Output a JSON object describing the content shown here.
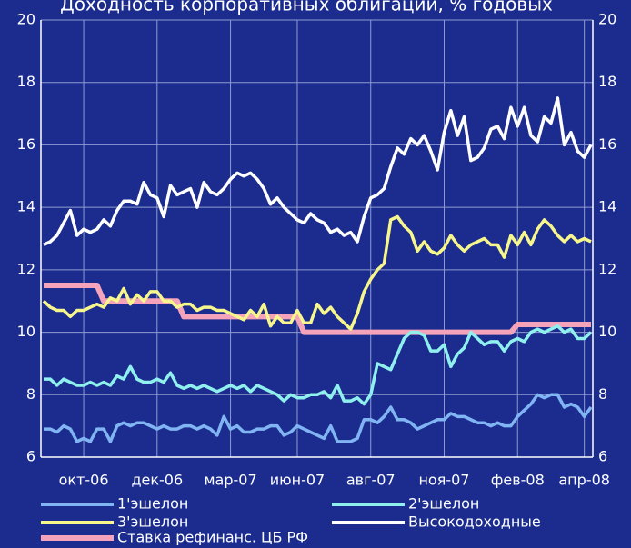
{
  "chart_data": {
    "type": "line",
    "title": "Доходность корпоративных облигаций, % годовых",
    "categories": [
      null,
      null,
      null,
      null,
      null,
      null,
      "окт-06",
      null,
      null,
      null,
      null,
      null,
      null,
      null,
      null,
      null,
      null,
      "дек-06",
      null,
      null,
      null,
      null,
      null,
      null,
      null,
      null,
      null,
      null,
      "мар-07",
      null,
      null,
      null,
      null,
      null,
      null,
      null,
      null,
      null,
      "июн-07",
      null,
      null,
      null,
      null,
      null,
      null,
      null,
      null,
      null,
      null,
      "авг-07",
      null,
      null,
      null,
      null,
      null,
      null,
      null,
      null,
      null,
      null,
      "ноя-07",
      null,
      null,
      null,
      null,
      null,
      null,
      null,
      null,
      null,
      null,
      "фев-08",
      null,
      null,
      null,
      null,
      null,
      null,
      null,
      null,
      null,
      "апр-08",
      null
    ],
    "series": [
      {
        "name": "1'эшелон",
        "color": "#80b4f2",
        "values": [
          6.9,
          6.9,
          6.8,
          7.0,
          6.9,
          6.5,
          6.6,
          6.5,
          6.9,
          6.9,
          6.5,
          7.0,
          7.1,
          7.0,
          7.1,
          7.1,
          7.0,
          6.9,
          7.0,
          6.9,
          6.9,
          7.0,
          7.0,
          6.9,
          7.0,
          6.9,
          6.7,
          7.3,
          6.9,
          7.0,
          6.8,
          6.8,
          6.9,
          6.9,
          7.0,
          7.0,
          6.7,
          6.8,
          7.0,
          6.9,
          6.8,
          6.7,
          6.6,
          7.0,
          6.5,
          6.5,
          6.5,
          6.6,
          7.2,
          7.2,
          7.1,
          7.3,
          7.6,
          7.2,
          7.2,
          7.1,
          6.9,
          7.0,
          7.1,
          7.2,
          7.2,
          7.4,
          7.3,
          7.3,
          7.2,
          7.1,
          7.1,
          7.0,
          7.1,
          7.0,
          7.0,
          7.3,
          7.5,
          7.7,
          8.0,
          7.9,
          8.0,
          8.0,
          7.6,
          7.7,
          7.6,
          7.3,
          7.6
        ]
      },
      {
        "name": "2'эшелон",
        "color": "#90f0ee",
        "values": [
          8.5,
          8.5,
          8.3,
          8.5,
          8.4,
          8.3,
          8.3,
          8.4,
          8.3,
          8.4,
          8.3,
          8.6,
          8.5,
          8.9,
          8.5,
          8.4,
          8.4,
          8.5,
          8.4,
          8.7,
          8.3,
          8.2,
          8.3,
          8.2,
          8.3,
          8.2,
          8.1,
          8.2,
          8.3,
          8.2,
          8.3,
          8.1,
          8.3,
          8.2,
          8.1,
          8.0,
          7.8,
          8.0,
          7.9,
          7.9,
          8.0,
          8.0,
          8.1,
          7.9,
          8.3,
          7.8,
          7.8,
          7.9,
          7.7,
          8.0,
          9.0,
          8.9,
          8.8,
          9.3,
          9.8,
          10.0,
          10.0,
          9.9,
          9.4,
          9.4,
          9.6,
          8.9,
          9.3,
          9.5,
          10.0,
          9.8,
          9.6,
          9.7,
          9.7,
          9.4,
          9.7,
          9.8,
          9.7,
          10.0,
          10.1,
          10.0,
          10.1,
          10.2,
          10.0,
          10.1,
          9.8,
          9.8,
          10.0
        ]
      },
      {
        "name": "3'эшелон",
        "color": "#f6f68c",
        "values": [
          11.0,
          10.8,
          10.7,
          10.7,
          10.5,
          10.7,
          10.7,
          10.8,
          10.9,
          10.8,
          11.1,
          11.0,
          11.4,
          10.9,
          11.2,
          11.0,
          11.3,
          11.3,
          11.0,
          11.0,
          10.8,
          10.9,
          10.9,
          10.7,
          10.8,
          10.8,
          10.7,
          10.7,
          10.6,
          10.5,
          10.4,
          10.7,
          10.5,
          10.9,
          10.2,
          10.5,
          10.3,
          10.3,
          10.7,
          10.3,
          10.3,
          10.9,
          10.6,
          10.8,
          10.5,
          10.3,
          10.1,
          10.6,
          11.3,
          11.7,
          12.0,
          12.2,
          13.6,
          13.7,
          13.4,
          13.2,
          12.6,
          12.9,
          12.6,
          12.5,
          12.7,
          13.1,
          12.8,
          12.6,
          12.8,
          12.9,
          13.0,
          12.8,
          12.8,
          12.4,
          13.1,
          12.8,
          13.2,
          12.8,
          13.3,
          13.6,
          13.4,
          13.1,
          12.9,
          13.1,
          12.9,
          13.0,
          12.9
        ]
      },
      {
        "name": "Высокодоходные",
        "color": "#ffffff",
        "values": [
          12.8,
          12.9,
          13.1,
          13.5,
          13.9,
          13.1,
          13.3,
          13.2,
          13.3,
          13.6,
          13.4,
          13.9,
          14.2,
          14.2,
          14.1,
          14.8,
          14.4,
          14.3,
          13.7,
          14.7,
          14.4,
          14.5,
          14.6,
          14.0,
          14.8,
          14.5,
          14.4,
          14.6,
          14.9,
          15.1,
          15.0,
          15.1,
          14.9,
          14.6,
          14.1,
          14.3,
          14.0,
          13.8,
          13.6,
          13.5,
          13.8,
          13.6,
          13.5,
          13.2,
          13.3,
          13.1,
          13.2,
          12.9,
          13.7,
          14.3,
          14.4,
          14.6,
          15.3,
          15.9,
          15.7,
          16.2,
          16.0,
          16.3,
          15.8,
          15.2,
          16.4,
          17.1,
          16.3,
          16.9,
          15.5,
          15.6,
          15.9,
          16.5,
          16.6,
          16.2,
          17.2,
          16.6,
          17.2,
          16.3,
          16.1,
          16.9,
          16.7,
          17.5,
          16.0,
          16.4,
          15.8,
          15.6,
          16.0
        ]
      },
      {
        "name": "Ставка рефинанс. ЦБ РФ",
        "color": "#f4a3ba",
        "values": [
          11.5,
          11.5,
          11.5,
          11.5,
          11.5,
          11.5,
          11.5,
          11.5,
          11.5,
          11,
          11,
          11,
          11,
          11,
          11,
          11,
          11,
          11,
          11,
          11,
          11,
          10.5,
          10.5,
          10.5,
          10.5,
          10.5,
          10.5,
          10.5,
          10.5,
          10.5,
          10.5,
          10.5,
          10.5,
          10.5,
          10.5,
          10.5,
          10.5,
          10.5,
          10.5,
          10,
          10,
          10,
          10,
          10,
          10,
          10,
          10,
          10,
          10,
          10,
          10,
          10,
          10,
          10,
          10,
          10,
          10,
          10,
          10,
          10,
          10,
          10,
          10,
          10,
          10,
          10,
          10,
          10,
          10,
          10,
          10,
          10.25,
          10.25,
          10.25,
          10.25,
          10.25,
          10.25,
          10.25,
          10.25,
          10.25,
          10.25,
          10.25,
          10.25
        ]
      }
    ],
    "ylim": [
      6,
      20
    ],
    "yticks": [
      6,
      8,
      10,
      12,
      14,
      16,
      18,
      20
    ],
    "grid": true
  }
}
